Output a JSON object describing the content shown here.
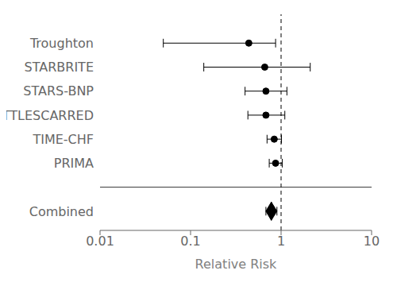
{
  "chart_data": {
    "type": "forest",
    "categories": [
      "Troughton",
      "STARBRITE",
      "STARS-BNP",
      "BATTLESCARRED",
      "TIME-CHF",
      "PRIMA"
    ],
    "values": [
      0.44,
      0.66,
      0.68,
      0.68,
      0.84,
      0.87
    ],
    "ci_low": [
      0.05,
      0.14,
      0.4,
      0.43,
      0.7,
      0.74
    ],
    "ci_high": [
      0.87,
      2.1,
      1.16,
      1.1,
      1.01,
      1.03
    ],
    "marker": "circle",
    "combined": {
      "label": "Combined",
      "value": 0.78,
      "ci_low": 0.68,
      "ci_high": 0.9,
      "marker": "diamond"
    },
    "xlabel": "Relative Risk",
    "log": "x",
    "xlim": [
      0.01,
      10
    ],
    "xticks": [
      0.01,
      0.1,
      1,
      10
    ],
    "ref_line": 1.0,
    "color": "#000000",
    "grid": false
  }
}
